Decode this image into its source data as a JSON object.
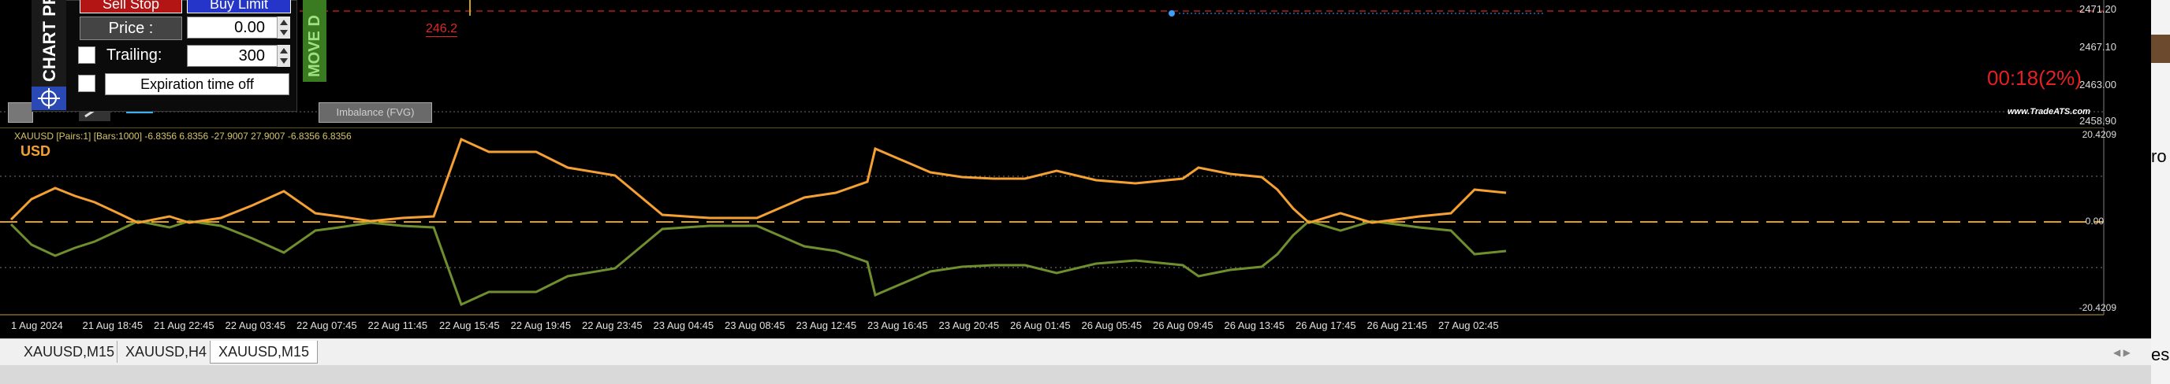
{
  "top_chart": {
    "price_labels": [
      "2471.20",
      "2467.10",
      "2463.00",
      "2458.90"
    ],
    "marker_label": "246.2",
    "timer": "00:18(2%)",
    "brand": "www.TradeATS.com",
    "imbalance_label": "Imbalance (FVG)",
    "move_label": "MOVE D"
  },
  "panel": {
    "title": "CHART PR",
    "sell_stop": "Sell Stop",
    "buy_limit": "Buy Limit",
    "price_label": "Price :",
    "price_value": "0.00",
    "trailing_label": "Trailing:",
    "trailing_value": "300",
    "expiration_label": "Expiration time off"
  },
  "indicator": {
    "header": "XAUUSD [Pairs:1] [Bars:1000] -6.8356 6.8356 -27.9007 27.9007 -6.8356 6.8356",
    "currency": "USD",
    "axis_labels": [
      "20.4209",
      "0.00",
      "-20.4209"
    ],
    "time_labels": [
      "1 Aug 2024",
      "21 Aug 18:45",
      "21 Aug 22:45",
      "22 Aug 03:45",
      "22 Aug 07:45",
      "22 Aug 11:45",
      "22 Aug 15:45",
      "22 Aug 19:45",
      "22 Aug 23:45",
      "23 Aug 04:45",
      "23 Aug 08:45",
      "23 Aug 12:45",
      "23 Aug 16:45",
      "23 Aug 20:45",
      "26 Aug 01:45",
      "26 Aug 05:45",
      "26 Aug 09:45",
      "26 Aug 13:45",
      "26 Aug 17:45",
      "26 Aug 21:45",
      "27 Aug 02:45"
    ],
    "colors": {
      "orange": "#f5a033",
      "green": "#6f8f2f",
      "zero": "#e0a020"
    }
  },
  "tabs": [
    "XAUUSD,M15",
    "XAUUSD,H4",
    "XAUUSD,M15"
  ],
  "right_clip": {
    "text1": "ro",
    "text2": "es"
  }
}
